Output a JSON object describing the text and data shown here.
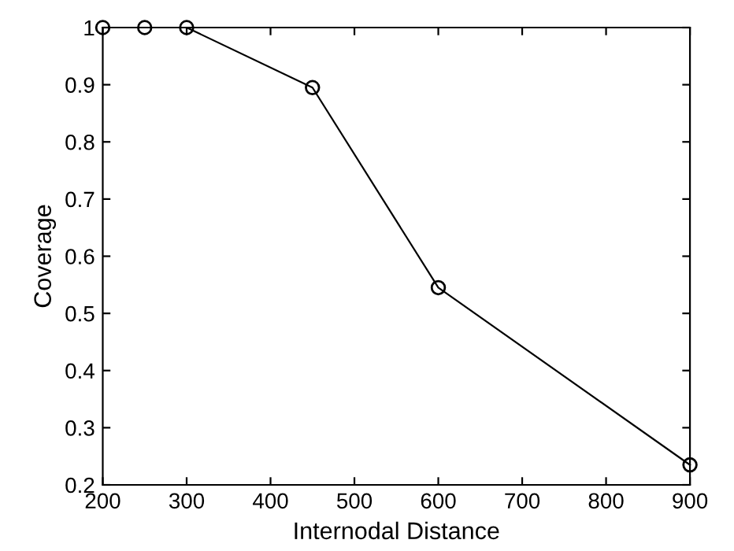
{
  "chart_data": {
    "type": "line",
    "xlabel": "Internodal Distance",
    "ylabel": "Coverage",
    "x": [
      200,
      250,
      300,
      450,
      600,
      900
    ],
    "series": [
      {
        "color": "#000000",
        "values": [
          1,
          1,
          1,
          0.895,
          0.545,
          0.235
        ]
      }
    ],
    "xlim": [
      200,
      900
    ],
    "xticks": [
      200,
      300,
      400,
      500,
      600,
      700,
      800,
      900
    ],
    "ylim": [
      0.2,
      1
    ],
    "yticks": [
      0.2,
      0.3,
      0.4,
      0.5,
      0.6,
      0.7,
      0.8,
      0.9,
      1
    ],
    "marker": "circle",
    "line_style": "solid",
    "grid": false,
    "legend": false
  }
}
